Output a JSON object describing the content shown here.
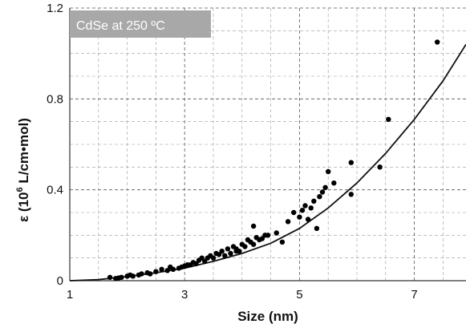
{
  "chart_data": {
    "type": "scatter",
    "title": "CdSe at 250 ºC",
    "xlabel": "Size (nm)",
    "ylabel_main": "ε (10",
    "ylabel_sup": "6",
    "ylabel_tail": " L/cm•mol)",
    "xlim": [
      1,
      7.9
    ],
    "ylim": [
      0,
      1.2
    ],
    "x_ticks": [
      1,
      3,
      5,
      7
    ],
    "y_ticks": [
      0,
      0.4,
      0.8,
      1.2
    ],
    "x_tick_labels": [
      "1",
      "3",
      "5",
      "7"
    ],
    "y_tick_labels": [
      "0",
      "0.4",
      "0.8",
      "1.2"
    ],
    "grid": true,
    "series": [
      {
        "type": "scatter",
        "x": [
          1.7,
          1.8,
          1.85,
          1.9,
          2.0,
          2.05,
          2.1,
          2.2,
          2.25,
          2.35,
          2.4,
          2.5,
          2.6,
          2.7,
          2.75,
          2.8,
          2.9,
          2.95,
          3.0,
          3.05,
          3.1,
          3.15,
          3.2,
          3.25,
          3.3,
          3.35,
          3.4,
          3.45,
          3.5,
          3.55,
          3.6,
          3.65,
          3.7,
          3.75,
          3.8,
          3.85,
          3.9,
          3.95,
          4.0,
          4.05,
          4.1,
          4.15,
          4.2,
          4.25,
          4.3,
          4.35,
          4.4,
          4.6,
          4.7,
          4.8,
          4.9,
          5.0,
          5.05,
          5.1,
          5.15,
          5.2,
          5.25,
          5.3,
          5.35,
          5.4,
          5.45,
          5.5,
          5.6,
          5.9,
          5.9,
          6.4,
          6.55,
          7.4,
          4.2,
          4.45,
          3.9
        ],
        "y": [
          0.015,
          0.01,
          0.012,
          0.015,
          0.02,
          0.025,
          0.02,
          0.025,
          0.03,
          0.035,
          0.03,
          0.04,
          0.05,
          0.045,
          0.06,
          0.05,
          0.055,
          0.06,
          0.065,
          0.07,
          0.07,
          0.08,
          0.075,
          0.09,
          0.1,
          0.085,
          0.1,
          0.11,
          0.1,
          0.12,
          0.115,
          0.13,
          0.11,
          0.14,
          0.12,
          0.15,
          0.14,
          0.13,
          0.16,
          0.15,
          0.18,
          0.17,
          0.16,
          0.19,
          0.18,
          0.185,
          0.2,
          0.21,
          0.17,
          0.26,
          0.3,
          0.28,
          0.31,
          0.33,
          0.27,
          0.32,
          0.35,
          0.23,
          0.37,
          0.39,
          0.41,
          0.48,
          0.43,
          0.38,
          0.52,
          0.5,
          0.71,
          1.05,
          0.24,
          0.2,
          0.13
        ]
      },
      {
        "type": "line",
        "x": [
          1,
          1.5,
          2,
          2.5,
          3,
          3.5,
          4,
          4.5,
          5,
          5.5,
          6,
          6.5,
          7,
          7.5,
          7.9
        ],
        "y": [
          0.0,
          0.005,
          0.018,
          0.035,
          0.055,
          0.085,
          0.12,
          0.165,
          0.23,
          0.32,
          0.43,
          0.56,
          0.71,
          0.88,
          1.04
        ]
      }
    ]
  }
}
